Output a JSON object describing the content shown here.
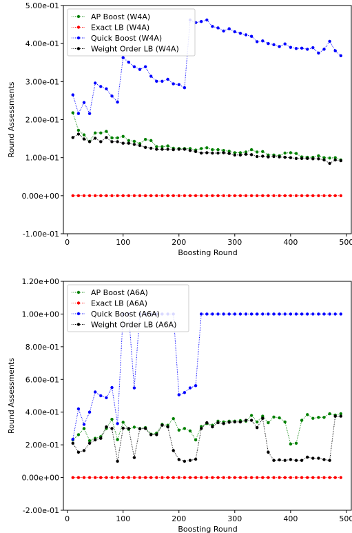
{
  "chart_data": [
    {
      "type": "line",
      "xlabel": "Boosting Round",
      "ylabel": "Round Assessments",
      "xlim": [
        -7,
        510
      ],
      "ylim": [
        -0.1,
        0.5
      ],
      "xticks": [
        0,
        100,
        200,
        300,
        400,
        500
      ],
      "xtick_labels": [
        "0",
        "100",
        "200",
        "300",
        "400",
        "500"
      ],
      "yticks": [
        -0.1,
        0.0,
        0.1,
        0.2,
        0.3,
        0.4,
        0.5
      ],
      "ytick_labels": [
        "-1.00e-01",
        "0.00e+00",
        "1.00e-01",
        "2.00e-01",
        "3.00e-01",
        "4.00e-01",
        "5.00e-01"
      ],
      "legend_position": "upper-left",
      "grid": false,
      "x": [
        10,
        20,
        30,
        40,
        50,
        60,
        70,
        80,
        90,
        100,
        110,
        120,
        130,
        140,
        150,
        160,
        170,
        180,
        190,
        200,
        210,
        220,
        230,
        240,
        250,
        260,
        270,
        280,
        290,
        300,
        310,
        320,
        330,
        340,
        350,
        360,
        370,
        380,
        390,
        400,
        410,
        420,
        430,
        440,
        450,
        460,
        470,
        480,
        490
      ],
      "series": [
        {
          "name": "AP Boost (W4A)",
          "color": "#008000",
          "values": [
            0.218,
            0.172,
            0.16,
            0.143,
            0.165,
            0.165,
            0.169,
            0.152,
            0.152,
            0.156,
            0.145,
            0.143,
            0.137,
            0.148,
            0.145,
            0.129,
            0.129,
            0.131,
            0.125,
            0.124,
            0.124,
            0.124,
            0.12,
            0.124,
            0.126,
            0.121,
            0.121,
            0.119,
            0.117,
            0.113,
            0.113,
            0.115,
            0.121,
            0.115,
            0.116,
            0.107,
            0.107,
            0.105,
            0.112,
            0.113,
            0.111,
            0.102,
            0.101,
            0.101,
            0.105,
            0.1,
            0.099,
            0.1,
            0.094
          ]
        },
        {
          "name": "Exact LB (W4A)",
          "color": "#ff0000",
          "values": [
            0,
            0,
            0,
            0,
            0,
            0,
            0,
            0,
            0,
            0,
            0,
            0,
            0,
            0,
            0,
            0,
            0,
            0,
            0,
            0,
            0,
            0,
            0,
            0,
            0,
            0,
            0,
            0,
            0,
            0,
            0,
            0,
            0,
            0,
            0,
            0,
            0,
            0,
            0,
            0,
            0,
            0,
            0,
            0,
            0,
            0,
            0,
            0,
            0
          ]
        },
        {
          "name": "Quick Boost (W4A)",
          "color": "#0000ff",
          "values": [
            0.265,
            0.216,
            0.245,
            0.216,
            0.296,
            0.287,
            0.281,
            0.262,
            0.246,
            0.363,
            0.351,
            0.339,
            0.332,
            0.339,
            0.314,
            0.301,
            0.301,
            0.306,
            0.294,
            0.292,
            0.284,
            0.462,
            0.455,
            0.458,
            0.462,
            0.445,
            0.441,
            0.433,
            0.439,
            0.431,
            0.427,
            0.423,
            0.419,
            0.405,
            0.407,
            0.4,
            0.397,
            0.392,
            0.399,
            0.39,
            0.387,
            0.388,
            0.385,
            0.389,
            0.375,
            0.385,
            0.406,
            0.381,
            0.368
          ]
        },
        {
          "name": "Weight Order LB (W4A)",
          "color": "#000000",
          "values": [
            0.153,
            0.162,
            0.149,
            0.142,
            0.151,
            0.142,
            0.153,
            0.142,
            0.142,
            0.138,
            0.138,
            0.135,
            0.132,
            0.127,
            0.125,
            0.122,
            0.122,
            0.122,
            0.121,
            0.122,
            0.122,
            0.119,
            0.116,
            0.112,
            0.113,
            0.112,
            0.112,
            0.113,
            0.111,
            0.107,
            0.107,
            0.109,
            0.108,
            0.103,
            0.104,
            0.102,
            0.103,
            0.102,
            0.101,
            0.1,
            0.098,
            0.098,
            0.098,
            0.097,
            0.097,
            0.094,
            0.085,
            0.094,
            0.092
          ]
        }
      ]
    },
    {
      "type": "line",
      "xlabel": "Boosting Round",
      "ylabel": "Round Assessments",
      "xlim": [
        -7,
        510
      ],
      "ylim": [
        -0.2,
        1.2
      ],
      "xticks": [
        0,
        100,
        200,
        300,
        400,
        500
      ],
      "xtick_labels": [
        "0",
        "100",
        "200",
        "300",
        "400",
        "500"
      ],
      "yticks": [
        -0.2,
        0.0,
        0.2,
        0.4,
        0.6,
        0.8,
        1.0,
        1.2
      ],
      "ytick_labels": [
        "-2.00e-01",
        "0.00e+00",
        "2.00e-01",
        "4.00e-01",
        "6.00e-01",
        "8.00e-01",
        "1.00e+00",
        "1.20e+00"
      ],
      "legend_position": "upper-left",
      "grid": false,
      "x": [
        10,
        20,
        30,
        40,
        50,
        60,
        70,
        80,
        90,
        100,
        110,
        120,
        130,
        140,
        150,
        160,
        170,
        180,
        190,
        200,
        210,
        220,
        230,
        240,
        250,
        260,
        270,
        280,
        290,
        300,
        310,
        320,
        330,
        340,
        350,
        360,
        370,
        380,
        390,
        400,
        410,
        420,
        430,
        440,
        450,
        460,
        470,
        480,
        490
      ],
      "series": [
        {
          "name": "AP Boost (A6A)",
          "color": "#008000",
          "values": [
            0.23,
            0.262,
            0.3,
            0.225,
            0.24,
            0.25,
            0.3,
            0.356,
            0.232,
            0.338,
            0.295,
            0.308,
            0.3,
            0.305,
            0.265,
            0.272,
            0.325,
            0.32,
            0.36,
            0.29,
            0.3,
            0.285,
            0.23,
            0.312,
            0.33,
            0.32,
            0.345,
            0.34,
            0.345,
            0.345,
            0.348,
            0.345,
            0.38,
            0.34,
            0.375,
            0.335,
            0.37,
            0.365,
            0.34,
            0.205,
            0.21,
            0.35,
            0.385,
            0.362,
            0.368,
            0.368,
            0.39,
            0.382,
            0.39
          ]
        },
        {
          "name": "Exact LB (A6A)",
          "color": "#ff0000",
          "values": [
            0,
            0,
            0,
            0,
            0,
            0,
            0,
            0,
            0,
            0,
            0,
            0,
            0,
            0,
            0,
            0,
            0,
            0,
            0,
            0,
            0,
            0,
            0,
            0,
            0,
            0,
            0,
            0,
            0,
            0,
            0,
            0,
            0,
            0,
            0,
            0,
            0,
            0,
            0,
            0,
            0,
            0,
            0,
            0,
            0,
            0,
            0,
            0,
            0
          ]
        },
        {
          "name": "Quick Boost (A6A)",
          "color": "#0000ff",
          "values": [
            0.234,
            0.42,
            0.325,
            0.4,
            0.523,
            0.5,
            0.488,
            0.55,
            0.33,
            1.0,
            1.0,
            0.548,
            1.0,
            1.0,
            1.0,
            1.0,
            1.0,
            1.0,
            1.0,
            0.506,
            0.52,
            0.548,
            0.562,
            1.0,
            1.0,
            1.0,
            1.0,
            1.0,
            1.0,
            1.0,
            1.0,
            1.0,
            1.0,
            1.0,
            1.0,
            1.0,
            1.0,
            1.0,
            1.0,
            1.0,
            1.0,
            1.0,
            1.0,
            1.0,
            1.0,
            1.0,
            1.0,
            1.0,
            1.0
          ]
        },
        {
          "name": "Weight Order LB (A6A)",
          "color": "#000000",
          "values": [
            0.21,
            0.155,
            0.165,
            0.21,
            0.23,
            0.24,
            0.31,
            0.3,
            0.1,
            0.302,
            0.3,
            0.122,
            0.298,
            0.3,
            0.262,
            0.262,
            0.32,
            0.31,
            0.165,
            0.11,
            0.1,
            0.105,
            0.112,
            0.3,
            0.335,
            0.31,
            0.335,
            0.33,
            0.338,
            0.34,
            0.34,
            0.35,
            0.35,
            0.305,
            0.362,
            0.155,
            0.105,
            0.108,
            0.105,
            0.11,
            0.105,
            0.105,
            0.125,
            0.118,
            0.118,
            0.11,
            0.105,
            0.375,
            0.375
          ]
        }
      ]
    }
  ]
}
